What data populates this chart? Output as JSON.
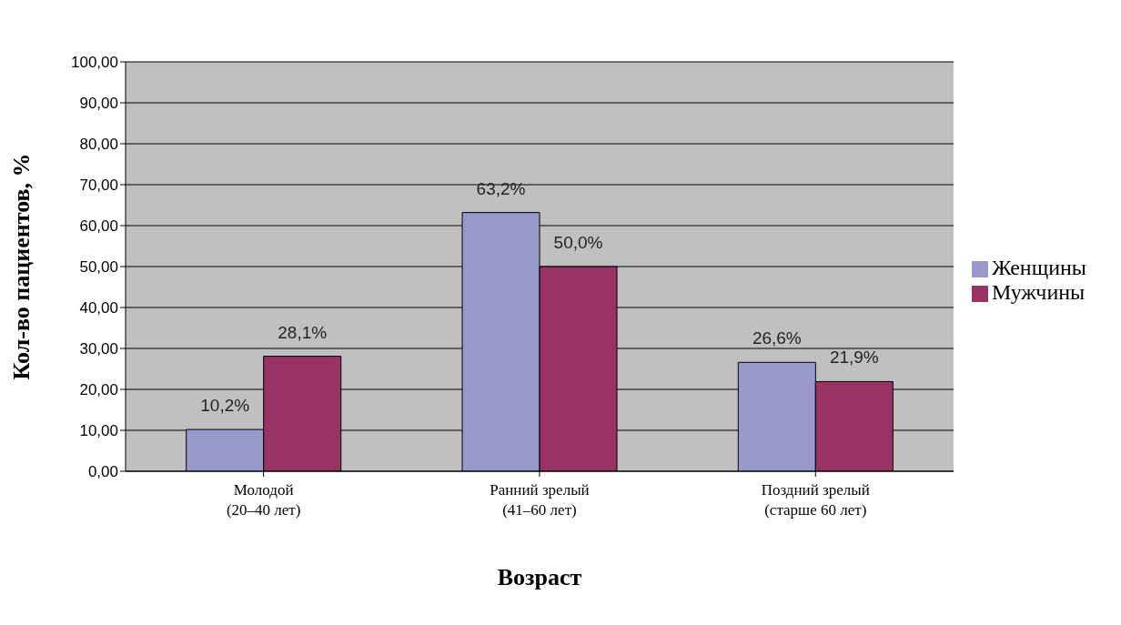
{
  "chart_data": {
    "type": "bar",
    "xlabel": "Возраст",
    "ylabel": "Кол-во пациентов, %",
    "categories": [
      "Молодой\n(20–40 лет)",
      "Ранний зрелый\n(41–60 лет)",
      "Поздний зрелый\n(старше 60 лет)"
    ],
    "series": [
      {
        "name": "Женщины",
        "color": "#9999cc",
        "values": [
          10.2,
          63.2,
          26.6
        ],
        "value_labels": [
          "10,2%",
          "63,2%",
          "26,6%"
        ]
      },
      {
        "name": "Мужчины",
        "color": "#993366",
        "values": [
          28.1,
          50.0,
          21.9
        ],
        "value_labels": [
          "28,1%",
          "50,0%",
          "21,9%"
        ]
      }
    ],
    "ylim": [
      0,
      100
    ],
    "yticks": [
      {
        "value": 0,
        "label": "0,00"
      },
      {
        "value": 10,
        "label": "10,00"
      },
      {
        "value": 20,
        "label": "20,00"
      },
      {
        "value": 30,
        "label": "30,00"
      },
      {
        "value": 40,
        "label": "40,00"
      },
      {
        "value": 50,
        "label": "50,00"
      },
      {
        "value": 60,
        "label": "60,00"
      },
      {
        "value": 70,
        "label": "70,00"
      },
      {
        "value": 80,
        "label": "80,00"
      },
      {
        "value": 90,
        "label": "90,00"
      },
      {
        "value": 100,
        "label": "100,00"
      }
    ],
    "grid": "y",
    "legend": "right"
  }
}
